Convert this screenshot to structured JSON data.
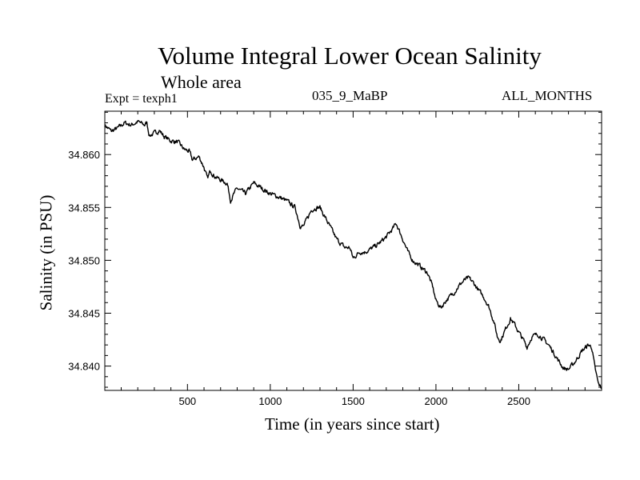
{
  "header": {
    "title": "Volume Integral Lower Ocean Salinity",
    "subtitle": "Whole area",
    "experiment": "Expt = texph1",
    "case_id": "035_9_MaBP",
    "months": "ALL_MONTHS"
  },
  "chart_data": {
    "type": "line",
    "title": "Volume Integral Lower Ocean Salinity",
    "subtitle": "Whole area",
    "xlabel": "Time (in years since start)",
    "ylabel": "Salinity (in PSU)",
    "xlim": [
      1,
      3000
    ],
    "ylim": [
      34.8377,
      34.8641
    ],
    "xticks": [
      500,
      1000,
      1500,
      2000,
      2500
    ],
    "xtick_labels": [
      "500",
      "1000",
      "1500",
      "2000",
      "2500"
    ],
    "yticks": [
      34.84,
      34.845,
      34.85,
      34.855,
      34.86
    ],
    "ytick_labels": [
      "34.840",
      "34.845",
      "34.850",
      "34.855",
      "34.860"
    ],
    "grid": false,
    "line_color": "#000000",
    "series": [
      {
        "x": [
          1,
          40,
          80,
          120,
          160,
          200,
          240,
          255,
          270,
          300,
          330,
          360,
          400,
          440,
          480,
          510,
          530,
          570,
          600,
          620,
          640,
          660,
          700,
          740,
          760,
          800,
          850,
          900,
          950,
          1000,
          1050,
          1100,
          1150,
          1180,
          1200,
          1250,
          1280,
          1300,
          1350,
          1400,
          1450,
          1480,
          1500,
          1540,
          1570,
          1600,
          1650,
          1700,
          1740,
          1760,
          1800,
          1830,
          1860,
          1900,
          1950,
          1980,
          2000,
          2030,
          2060,
          2100,
          2150,
          2180,
          2200,
          2230,
          2260,
          2290,
          2320,
          2350,
          2370,
          2390,
          2420,
          2450,
          2480,
          2500,
          2530,
          2550,
          2580,
          2620,
          2650,
          2680,
          2710,
          2740,
          2770,
          2800,
          2830,
          2860,
          2880,
          2900,
          2920,
          2940,
          2960,
          2980,
          3000
        ],
        "y": [
          34.8628,
          34.8622,
          34.8625,
          34.863,
          34.8628,
          34.8631,
          34.8628,
          34.863,
          34.8618,
          34.862,
          34.8623,
          34.8617,
          34.8613,
          34.8612,
          34.8605,
          34.8603,
          34.8595,
          34.8598,
          34.8588,
          34.8577,
          34.8585,
          34.858,
          34.8576,
          34.8573,
          34.8557,
          34.8568,
          34.8563,
          34.8573,
          34.8568,
          34.8563,
          34.856,
          34.8556,
          34.855,
          34.8533,
          34.8532,
          34.8548,
          34.855,
          34.855,
          34.8535,
          34.852,
          34.8512,
          34.8512,
          34.8502,
          34.8508,
          34.8508,
          34.851,
          34.8515,
          34.8522,
          34.853,
          34.8535,
          34.852,
          34.8508,
          34.85,
          34.8495,
          34.8488,
          34.8475,
          34.8462,
          34.8455,
          34.8462,
          34.8468,
          34.8478,
          34.8482,
          34.8483,
          34.8478,
          34.8471,
          34.8465,
          34.8456,
          34.8442,
          34.8428,
          34.8424,
          34.8435,
          34.8445,
          34.8438,
          34.8432,
          34.8424,
          34.8418,
          34.8428,
          34.843,
          34.8425,
          34.842,
          34.8413,
          34.8405,
          34.8398,
          34.8397,
          34.8402,
          34.8409,
          34.8414,
          34.8417,
          34.842,
          34.8418,
          34.8398,
          34.8383,
          34.8379
        ]
      }
    ]
  }
}
